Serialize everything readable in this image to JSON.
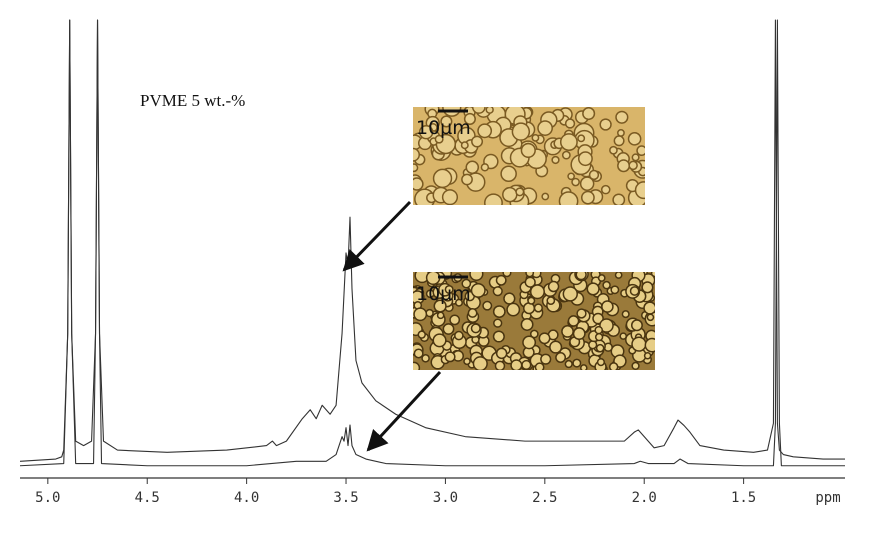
{
  "chart_data": {
    "type": "line",
    "annotation": "PVME 5 wt.-%",
    "xlabel": "ppm",
    "insets": [
      {
        "scale_label": "10µm"
      },
      {
        "scale_label": "10µm"
      }
    ],
    "xlim": [
      5.14,
      0.99
    ],
    "ylim": [
      0,
      100
    ],
    "xticks": [
      {
        "value": 5,
        "label": "5.0"
      },
      4.5,
      {
        "value": 4,
        "label": "4.0"
      },
      3.5,
      {
        "value": 3,
        "label": "3.0"
      },
      2.5,
      {
        "value": 2,
        "label": "2.0"
      },
      1.5
    ],
    "series": [
      {
        "color": "#333333",
        "x": [
          5.14,
          4.96,
          4.93,
          4.92,
          4.9,
          4.89,
          4.88,
          4.86,
          4.82,
          4.78,
          4.76,
          4.75,
          4.74,
          4.72,
          4.65,
          4.4,
          4.1,
          3.9,
          3.87,
          3.85,
          3.8,
          3.72,
          3.68,
          3.65,
          3.62,
          3.58,
          3.55,
          3.52,
          3.5,
          3.49,
          3.48,
          3.47,
          3.45,
          3.42,
          3.35,
          3.25,
          3.1,
          2.9,
          2.6,
          2.3,
          2.1,
          2.05,
          2.03,
          2.0,
          1.95,
          1.9,
          1.85,
          1.83,
          1.8,
          1.77,
          1.72,
          1.6,
          1.45,
          1.38,
          1.35,
          1.34,
          1.33,
          1.32,
          1.3,
          1.25,
          1.1,
          0.99
        ],
        "values": [
          1.5,
          2,
          2.5,
          4,
          30,
          100,
          30,
          6,
          5,
          6,
          30,
          100,
          30,
          6,
          4,
          3.5,
          4,
          5,
          6,
          5,
          6,
          11,
          13,
          11,
          14,
          12,
          14,
          30,
          48,
          45,
          56,
          40,
          24,
          19,
          15,
          12,
          9,
          7,
          6,
          6,
          6,
          8,
          8.5,
          7,
          4.5,
          5,
          9,
          10.7,
          9.5,
          8,
          5,
          4,
          3.5,
          4,
          10,
          100,
          10,
          4,
          3,
          2.5,
          2,
          2
        ]
      },
      {
        "color": "#333333",
        "x": [
          5.14,
          4.92,
          4.9,
          4.89,
          4.88,
          4.86,
          4.77,
          4.76,
          4.75,
          4.74,
          4.73,
          4.5,
          4.0,
          3.75,
          3.6,
          3.55,
          3.52,
          3.51,
          3.5,
          3.49,
          3.48,
          3.47,
          3.45,
          3.4,
          3.3,
          3.0,
          2.5,
          2.05,
          2.02,
          1.98,
          1.85,
          1.82,
          1.78,
          1.5,
          1.35,
          1.34,
          1.33,
          1.32,
          1.31,
          1.2,
          0.99
        ],
        "values": [
          0.5,
          1,
          30,
          100,
          30,
          1,
          1,
          30,
          100,
          30,
          1,
          0.5,
          0.5,
          1.5,
          1.5,
          3,
          7,
          6,
          9,
          5,
          9.6,
          5,
          3,
          2,
          1,
          0.5,
          0.5,
          1,
          1.5,
          1,
          1,
          2,
          1,
          0.5,
          0.5,
          10,
          100,
          10,
          0.5,
          0.5,
          0.5
        ]
      }
    ]
  }
}
